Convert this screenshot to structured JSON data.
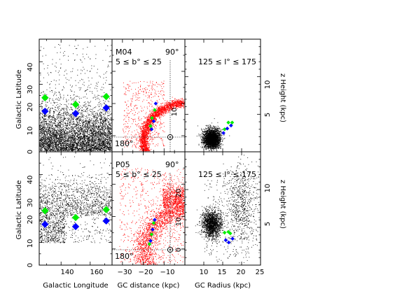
{
  "figure": {
    "colors": {
      "points_black": "#000000",
      "points_red": "#ff0000",
      "marker_green": "#00ee00",
      "marker_blue": "#0000ff",
      "frame": "#000000"
    },
    "labels": {
      "left_ylabel": "Galactic Latitude",
      "right_ylabel": "z Height (kpc)",
      "xlabel_col1": "Galactic Longitude",
      "xlabel_col2": "GC distance (kpc)",
      "xlabel_col3": "GC Radius (kpc)"
    }
  },
  "chart_data": [
    {
      "panel": "top-left",
      "type": "scatter",
      "xlabel": "",
      "ylabel": "Galactic Latitude",
      "xlim": [
        125,
        175
      ],
      "ylim": [
        0,
        50
      ],
      "yticks": [
        0,
        10,
        20,
        30,
        40
      ],
      "series": [
        {
          "marker": "diamond",
          "color": "#00ee00",
          "x": [
            129,
            150,
            171
          ],
          "y": [
            24,
            21,
            24.5
          ]
        },
        {
          "marker": "diamond",
          "color": "#0000ff",
          "x": [
            129,
            150,
            171
          ],
          "y": [
            18,
            17,
            19.5
          ]
        }
      ]
    },
    {
      "panel": "top-middle",
      "type": "scatter",
      "annotations": [
        "M04",
        "5 ≤ b° ≤ 25",
        "90°",
        "180°"
      ],
      "xlim": [
        -35,
        0
      ],
      "ylim": [
        -5,
        30
      ],
      "sun": [
        -8,
        0
      ],
      "series": [
        {
          "marker": "diamond",
          "color": "#00ee00",
          "x": [
            -16.5,
            -15.8,
            -14.5
          ],
          "y": [
            3,
            5.5,
            8
          ]
        },
        {
          "marker": "diamond",
          "color": "#0000ff",
          "x": [
            -16,
            -15,
            -14
          ],
          "y": [
            2,
            4.5,
            10
          ]
        }
      ]
    },
    {
      "panel": "top-right",
      "type": "scatter",
      "annotations": [
        "125 ≤ l° ≤ 175"
      ],
      "xlim": [
        5,
        25
      ],
      "ylim": [
        0,
        15
      ],
      "yticks_right": [
        5,
        10
      ],
      "series": [
        {
          "marker": "diamond",
          "color": "#00ee00",
          "x": [
            15.5,
            16.5,
            17.5
          ],
          "y": [
            3.0,
            3.9,
            3.9
          ]
        },
        {
          "marker": "diamond",
          "color": "#0000ff",
          "x": [
            15.2,
            16.2,
            17.2
          ],
          "y": [
            2.5,
            3.1,
            3.5
          ]
        }
      ]
    },
    {
      "panel": "bottom-left",
      "type": "scatter",
      "xlabel": "Galactic Longitude",
      "ylabel": "Galactic Latitude",
      "xlim": [
        125,
        175
      ],
      "ylim": [
        0,
        50
      ],
      "xticks": [
        140,
        160
      ],
      "yticks": [
        0,
        10,
        20,
        30,
        40
      ],
      "series": [
        {
          "marker": "diamond",
          "color": "#00ee00",
          "x": [
            129,
            150,
            171
          ],
          "y": [
            24,
            21,
            24.5
          ]
        },
        {
          "marker": "diamond",
          "color": "#0000ff",
          "x": [
            129,
            150,
            171
          ],
          "y": [
            18,
            17,
            19.5
          ]
        }
      ]
    },
    {
      "panel": "bottom-middle",
      "type": "scatter",
      "annotations": [
        "P05",
        "5 ≤ b° ≤ 25",
        "90°",
        "180°"
      ],
      "xlabel": "GC distance (kpc)",
      "xlim": [
        -35,
        0
      ],
      "ylim": [
        -5,
        30
      ],
      "xticks": [
        -30,
        -20,
        -10
      ],
      "yticks": [
        0,
        10,
        20
      ],
      "sun": [
        -8,
        0
      ],
      "series": [
        {
          "marker": "diamond",
          "color": "#00ee00",
          "x": [
            -17,
            -16,
            -15
          ],
          "y": [
            1.5,
            4.5,
            8
          ]
        },
        {
          "marker": "diamond",
          "color": "#0000ff",
          "x": [
            -16.5,
            -15.5,
            -14.5
          ],
          "y": [
            2.5,
            6,
            9
          ]
        }
      ]
    },
    {
      "panel": "bottom-right",
      "type": "scatter",
      "annotations": [
        "125 ≤ l° ≤ 175"
      ],
      "xlabel": "GC Radius (kpc)",
      "xlim": [
        5,
        25
      ],
      "ylim": [
        0,
        15
      ],
      "xticks": [
        10,
        15,
        20,
        25
      ],
      "yticks_right": [
        5,
        10
      ],
      "series": [
        {
          "marker": "diamond",
          "color": "#00ee00",
          "x": [
            15.5,
            16.5,
            17.0
          ],
          "y": [
            4.3,
            4.4,
            4.2
          ]
        },
        {
          "marker": "diamond",
          "color": "#0000ff",
          "x": [
            15.8,
            16.6,
            17.6
          ],
          "y": [
            3.3,
            3.0,
            3.5
          ]
        }
      ]
    }
  ]
}
